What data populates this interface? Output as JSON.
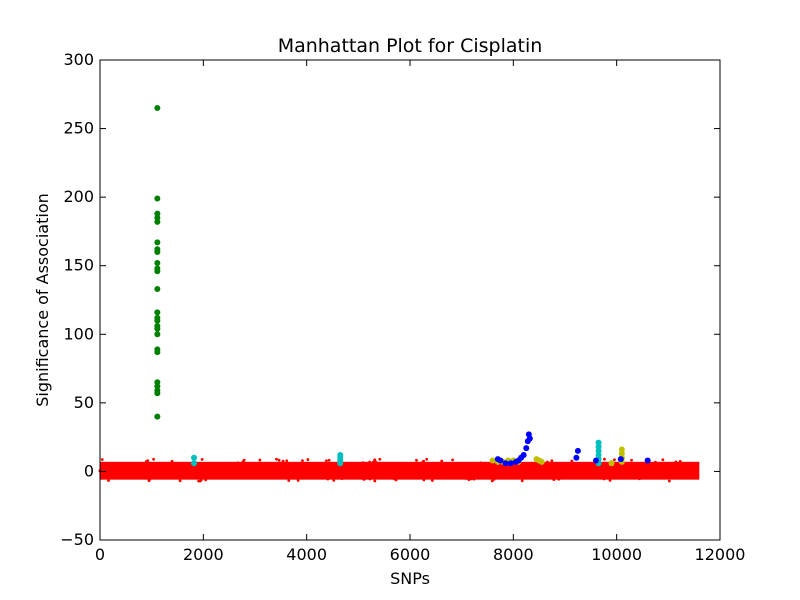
{
  "chart_data": {
    "type": "scatter",
    "title": "Manhattan Plot for Cisplatin",
    "xlabel": "SNPs",
    "ylabel": "Significance of Association",
    "xlim": [
      0,
      12000
    ],
    "ylim": [
      -50,
      300
    ],
    "xticks": [
      0,
      2000,
      4000,
      6000,
      8000,
      10000,
      12000
    ],
    "yticks": [
      -50,
      0,
      50,
      100,
      150,
      200,
      250,
      300
    ],
    "grid": false,
    "legend": "none",
    "baseline_band": {
      "x_range": [
        0,
        11600
      ],
      "y_range": [
        -6,
        7
      ],
      "color": "#ff0000"
    },
    "series": [
      {
        "color": "#008000",
        "points": [
          [
            1110,
            265
          ],
          [
            1110,
            199
          ],
          [
            1110,
            188
          ],
          [
            1110,
            185
          ],
          [
            1110,
            182
          ],
          [
            1110,
            167
          ],
          [
            1110,
            162
          ],
          [
            1110,
            160
          ],
          [
            1110,
            152
          ],
          [
            1110,
            148
          ],
          [
            1110,
            146
          ],
          [
            1110,
            133
          ],
          [
            1110,
            116
          ],
          [
            1110,
            112
          ],
          [
            1110,
            110
          ],
          [
            1110,
            106
          ],
          [
            1110,
            104
          ],
          [
            1110,
            100
          ],
          [
            1110,
            89
          ],
          [
            1110,
            87
          ],
          [
            1110,
            65
          ],
          [
            1110,
            62
          ],
          [
            1110,
            59
          ],
          [
            1110,
            57
          ],
          [
            1110,
            40
          ]
        ]
      },
      {
        "color": "#00bfbf",
        "points": [
          [
            1820,
            10
          ],
          [
            1820,
            6
          ],
          [
            4650,
            12
          ],
          [
            4650,
            10
          ],
          [
            4650,
            8
          ],
          [
            4650,
            6
          ],
          [
            9650,
            21
          ],
          [
            9650,
            18
          ],
          [
            9650,
            15
          ],
          [
            9650,
            12
          ],
          [
            9650,
            9
          ],
          [
            9650,
            6
          ]
        ]
      },
      {
        "color": "#bfbf00",
        "points": [
          [
            7600,
            8
          ],
          [
            7700,
            7
          ],
          [
            7800,
            7
          ],
          [
            7900,
            8
          ],
          [
            8000,
            8
          ],
          [
            8100,
            7
          ],
          [
            8450,
            9
          ],
          [
            8500,
            8
          ],
          [
            8550,
            7
          ],
          [
            10100,
            16
          ],
          [
            10100,
            13
          ],
          [
            10100,
            10
          ],
          [
            10100,
            7
          ],
          [
            9900,
            6
          ]
        ]
      },
      {
        "color": "#0000ff",
        "points": [
          [
            7700,
            9
          ],
          [
            7750,
            8
          ],
          [
            7850,
            6
          ],
          [
            7950,
            6
          ],
          [
            8050,
            7
          ],
          [
            8100,
            8
          ],
          [
            8150,
            10
          ],
          [
            8200,
            12
          ],
          [
            8250,
            17
          ],
          [
            8280,
            22
          ],
          [
            8300,
            27
          ],
          [
            8320,
            24
          ],
          [
            9250,
            15
          ],
          [
            9220,
            10
          ],
          [
            10080,
            9
          ],
          [
            10600,
            8
          ],
          [
            9600,
            8
          ]
        ]
      }
    ]
  }
}
